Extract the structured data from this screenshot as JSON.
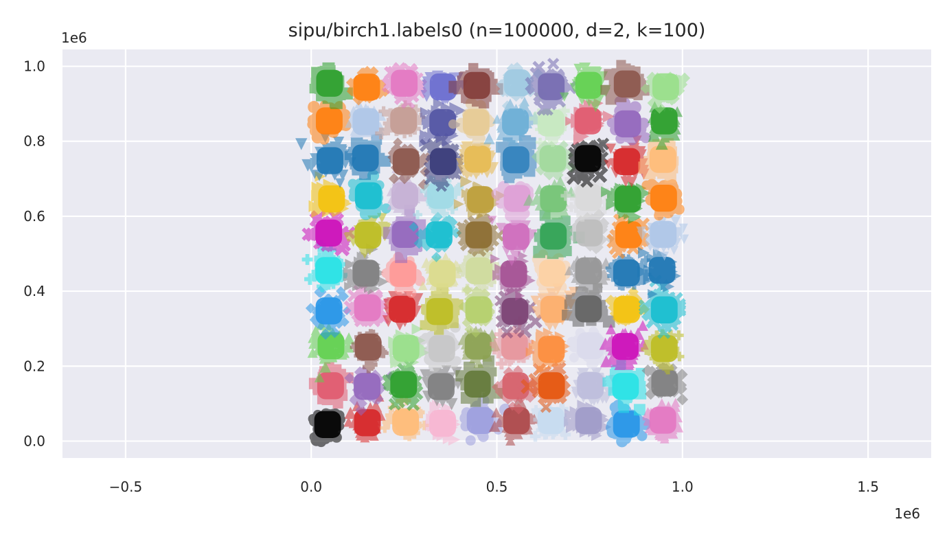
{
  "chart_data": {
    "type": "scatter",
    "title": "sipu/birch1.labels0 (n=100000, d=2, k=100)",
    "xlabel": "",
    "ylabel": "",
    "x_offset_label": "1e6",
    "y_offset_label": "1e6",
    "xlim": [
      -0.67,
      1.67
    ],
    "ylim": [
      -0.045,
      1.045
    ],
    "x_ticks": [
      -0.5,
      0.0,
      0.5,
      1.0,
      1.5
    ],
    "x_tick_labels": [
      "−0.5",
      "0.0",
      "0.5",
      "1.0",
      "1.5"
    ],
    "y_ticks": [
      0.0,
      0.2,
      0.4,
      0.6,
      0.8,
      1.0
    ],
    "y_tick_labels": [
      "0.0",
      "0.2",
      "0.4",
      "0.6",
      "0.8",
      "1.0"
    ],
    "grid": true,
    "legend": "none",
    "background_color": "#eaeaf2",
    "grid_color": "#ffffff",
    "x_units": 1000000,
    "y_units": 1000000,
    "clusters": {
      "grid_columns": 10,
      "grid_rows": 10,
      "x_min": 0.0,
      "x_max": 1.0,
      "y_min": 0.0,
      "y_max": 1.0,
      "colors_by_column_bottom_to_top": [
        [
          "#000000",
          "#e05a6e",
          "#62d050",
          "#2796e8",
          "#28e2e6",
          "#cc11b9",
          "#f3c20d",
          "#1f77b4",
          "#ff7f0e",
          "#2ca02c"
        ],
        [
          "#d62728",
          "#9467bd",
          "#8c564b",
          "#e377c2",
          "#7f7f7f",
          "#bcbd22",
          "#17becf",
          "#1f77b4",
          "#aec7e8",
          "#ff7f0e"
        ],
        [
          "#ffbb78",
          "#2ca02c",
          "#98df8a",
          "#d62728",
          "#ff9896",
          "#9467bd",
          "#c5b0d5",
          "#8c564b",
          "#c49c94",
          "#e377c2"
        ],
        [
          "#f7b6d2",
          "#7f7f7f",
          "#c7c7c7",
          "#bcbd22",
          "#dbdb8d",
          "#17becf",
          "#9edae5",
          "#393b79",
          "#5254a3",
          "#6b6ecf"
        ],
        [
          "#9c9ede",
          "#637939",
          "#8ca252",
          "#b5cf6b",
          "#cedb9c",
          "#8c6d31",
          "#bd9e39",
          "#e7ba52",
          "#e7cb94",
          "#843c39"
        ],
        [
          "#ad494a",
          "#d6616b",
          "#e7969c",
          "#7b4173",
          "#a55194",
          "#ce6dbd",
          "#de9ed6",
          "#3182bd",
          "#6baed6",
          "#9ecae1"
        ],
        [
          "#c6dbef",
          "#e6550d",
          "#fd8d3c",
          "#fdae6b",
          "#fdd0a2",
          "#31a354",
          "#74c476",
          "#a1d99b",
          "#c7e9c0",
          "#756bb1"
        ],
        [
          "#9e9ac8",
          "#bcbddc",
          "#dadaeb",
          "#636363",
          "#969696",
          "#bdbdbd",
          "#d9d9d9",
          "#000000",
          "#e05a6e",
          "#62d050"
        ],
        [
          "#2796e8",
          "#28e2e6",
          "#cc11b9",
          "#f3c20d",
          "#1f77b4",
          "#ff7f0e",
          "#2ca02c",
          "#d62728",
          "#9467bd",
          "#8c564b"
        ],
        [
          "#e377c2",
          "#7f7f7f",
          "#bcbd22",
          "#17becf",
          "#1f77b4",
          "#aec7e8",
          "#ff7f0e",
          "#ffbb78",
          "#2ca02c",
          "#98df8a"
        ]
      ]
    }
  }
}
